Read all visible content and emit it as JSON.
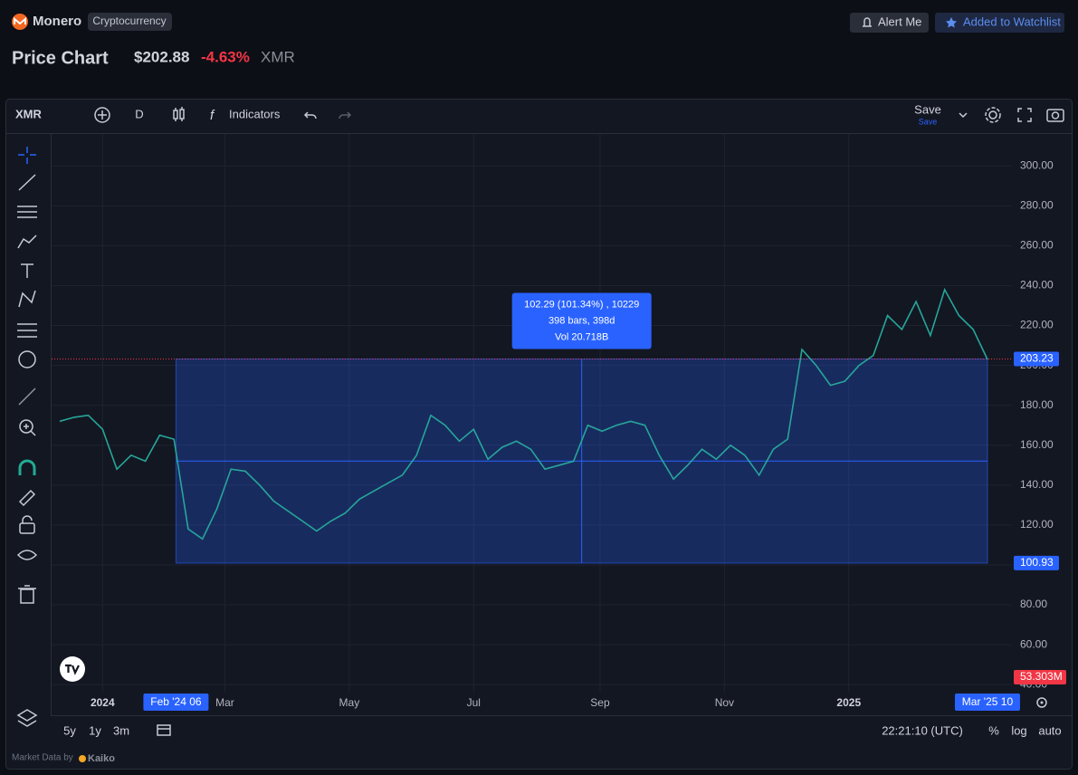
{
  "header": {
    "brand": "Monero",
    "tag": "Cryptocurrency",
    "alert_button": "Alert Me",
    "watchlist_button": "Added to Watchlist",
    "title": "Price Chart",
    "price": "$202.88",
    "change": "-4.63%",
    "symbol": "XMR"
  },
  "toolbar": {
    "symbol": "XMR",
    "interval": "D",
    "indicators": "Indicators",
    "save": "Save",
    "save_sub": "Save"
  },
  "chart_data": {
    "type": "line",
    "color": "#26a69a",
    "x": [
      "2023-12-11",
      "2023-12-18",
      "2023-12-25",
      "2024-01-01",
      "2024-01-08",
      "2024-01-15",
      "2024-01-22",
      "2024-01-29",
      "2024-02-05",
      "2024-02-12",
      "2024-02-19",
      "2024-02-26",
      "2024-03-04",
      "2024-03-11",
      "2024-03-18",
      "2024-03-25",
      "2024-04-01",
      "2024-04-08",
      "2024-04-15",
      "2024-04-22",
      "2024-04-29",
      "2024-05-06",
      "2024-05-13",
      "2024-05-20",
      "2024-05-27",
      "2024-06-03",
      "2024-06-10",
      "2024-06-17",
      "2024-06-24",
      "2024-07-01",
      "2024-07-08",
      "2024-07-15",
      "2024-07-22",
      "2024-07-29",
      "2024-08-05",
      "2024-08-12",
      "2024-08-19",
      "2024-08-26",
      "2024-09-02",
      "2024-09-09",
      "2024-09-16",
      "2024-09-23",
      "2024-09-30",
      "2024-10-07",
      "2024-10-14",
      "2024-10-21",
      "2024-10-28",
      "2024-11-04",
      "2024-11-11",
      "2024-11-18",
      "2024-11-25",
      "2024-12-02",
      "2024-12-09",
      "2024-12-16",
      "2024-12-23",
      "2024-12-30",
      "2025-01-06",
      "2025-01-13",
      "2025-01-20",
      "2025-01-27",
      "2025-02-03",
      "2025-02-10",
      "2025-02-17",
      "2025-02-24",
      "2025-03-03",
      "2025-03-10"
    ],
    "values": [
      172,
      174,
      175,
      168,
      148,
      155,
      152,
      165,
      163,
      118,
      113,
      128,
      148,
      147,
      140,
      132,
      127,
      122,
      117,
      122,
      126,
      133,
      137,
      141,
      145,
      155,
      175,
      170,
      162,
      168,
      153,
      159,
      162,
      158,
      148,
      150,
      152,
      170,
      167,
      170,
      172,
      170,
      155,
      143,
      150,
      158,
      153,
      160,
      155,
      145,
      158,
      163,
      208,
      200,
      190,
      192,
      200,
      205,
      225,
      218,
      232,
      215,
      238,
      225,
      218,
      203
    ],
    "xlim": [
      "2023-12-07",
      "2025-03-22"
    ],
    "xticks": [
      {
        "value": "2024-01-01",
        "label": "2024"
      },
      {
        "value": "2024-03-01",
        "label": "Mar"
      },
      {
        "value": "2024-05-01",
        "label": "May"
      },
      {
        "value": "2024-07-01",
        "label": "Jul"
      },
      {
        "value": "2024-09-01",
        "label": "Sep"
      },
      {
        "value": "2024-11-01",
        "label": "Nov"
      },
      {
        "value": "2025-01-01",
        "label": "2025"
      }
    ],
    "ylim": [
      36,
      316
    ],
    "yticks": [
      {
        "value": 40,
        "label": "40.00"
      },
      {
        "value": 60,
        "label": "60.00"
      },
      {
        "value": 80,
        "label": "80.00"
      },
      {
        "value": 100,
        "label": "100.00"
      },
      {
        "value": 120,
        "label": "120.00"
      },
      {
        "value": 140,
        "label": "140.00"
      },
      {
        "value": 160,
        "label": "160.00"
      },
      {
        "value": 180,
        "label": "180.00"
      },
      {
        "value": 200,
        "label": "200.00"
      },
      {
        "value": 220,
        "label": "220.00"
      },
      {
        "value": 240,
        "label": "240.00"
      },
      {
        "value": 260,
        "label": "260.00"
      },
      {
        "value": 280,
        "label": "280.00"
      },
      {
        "value": 300,
        "label": "300.00"
      }
    ],
    "grid": true,
    "measure": {
      "from": "2024-02-06",
      "to": "2025-03-10",
      "high": 203.23,
      "low": 100.93,
      "from_label": "Feb '24 06",
      "to_label": "Mar '25 10",
      "info": [
        "102.29 (101.34%) , 10229",
        "398 bars, 398d",
        "Vol 20.718B"
      ]
    },
    "volume_label": "53.303M"
  },
  "footer": {
    "ranges": [
      "5y",
      "1y",
      "3m"
    ],
    "time": "22:21:10 (UTC)",
    "scale_options": [
      "%",
      "log",
      "auto"
    ],
    "credit": "Market Data by",
    "provider": "Kaiko"
  }
}
